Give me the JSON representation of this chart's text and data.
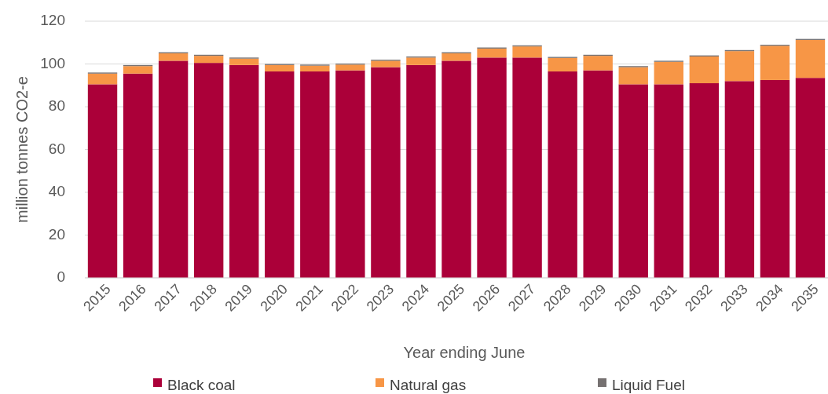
{
  "chart_data": {
    "type": "bar",
    "stacked": true,
    "xlabel": "Year ending June",
    "ylabel": "million tonnes CO2-e",
    "categories": [
      "2015",
      "2016",
      "2017",
      "2018",
      "2019",
      "2020",
      "2021",
      "2022",
      "2023",
      "2024",
      "2025",
      "2026",
      "2027",
      "2028",
      "2029",
      "2030",
      "2031",
      "2032",
      "2033",
      "2034",
      "2035"
    ],
    "series": [
      {
        "name": "Black coal",
        "color": "#ab0039",
        "values": [
          90.5,
          95.5,
          101.5,
          100.5,
          99.5,
          96.5,
          96.5,
          97,
          98.5,
          99.5,
          101.5,
          103,
          103,
          96.5,
          97,
          90.5,
          90.5,
          91,
          92,
          92.5,
          93.5
        ]
      },
      {
        "name": "Natural gas",
        "color": "#f79646",
        "values": [
          5,
          3.5,
          3.5,
          3.3,
          3,
          3,
          2.7,
          2.7,
          3,
          3.5,
          3.5,
          4.2,
          5.2,
          6.3,
          6.8,
          8,
          10.5,
          12.5,
          14,
          16,
          17.7
        ]
      },
      {
        "name": "Liquid Fuel",
        "color": "#767171",
        "values": [
          0.5,
          0.5,
          0.5,
          0.5,
          0.5,
          0.5,
          0.5,
          0.5,
          0.5,
          0.5,
          0.5,
          0.5,
          0.5,
          0.5,
          0.5,
          0.5,
          0.5,
          0.5,
          0.5,
          0.5,
          0.5
        ]
      }
    ],
    "ylim": [
      0,
      120
    ],
    "yticks": [
      0,
      20,
      40,
      60,
      80,
      100,
      120
    ],
    "grid": "y",
    "legend": "bottom"
  }
}
